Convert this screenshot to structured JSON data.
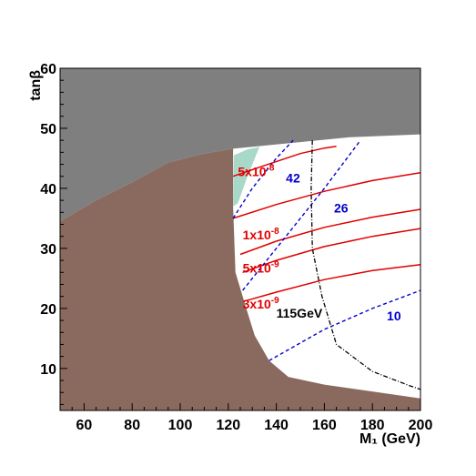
{
  "chart_data": {
    "type": "area",
    "xlabel": "M₁ (GeV)",
    "ylabel": "tanβ",
    "xlim": [
      50,
      200
    ],
    "ylim": [
      3,
      60
    ],
    "xticks": [
      60,
      80,
      100,
      120,
      140,
      160,
      180,
      200
    ],
    "yticks": [
      10,
      20,
      30,
      40,
      50,
      60
    ],
    "grid": false,
    "colors": {
      "excluded_high": "#7f7f7f",
      "excluded_low": "#8a6a5e",
      "cosmological": "#a8d8c8",
      "allowed": "#ffffff",
      "bs_contours": "#e00000",
      "mu_contours": "#0000cc",
      "higgs_contour": "#000000"
    },
    "regions": [
      {
        "name": "excluded-high",
        "boundary": [
          [
            50,
            60
          ],
          [
            200,
            60
          ],
          [
            200,
            49
          ],
          [
            170,
            48.5
          ],
          [
            122,
            46.6
          ],
          [
            110,
            45.8
          ],
          [
            95,
            44.3
          ],
          [
            80,
            41
          ],
          [
            65,
            38
          ],
          [
            50,
            34.5
          ]
        ]
      },
      {
        "name": "excluded-low",
        "boundary": [
          [
            50,
            3
          ],
          [
            200,
            3
          ],
          [
            200,
            5
          ],
          [
            160,
            7.3
          ],
          [
            145,
            8.6
          ],
          [
            137,
            11.3
          ],
          [
            131,
            15.5
          ],
          [
            127.5,
            20
          ],
          [
            123,
            26
          ],
          [
            122,
            37
          ],
          [
            122,
            46.6
          ],
          [
            110,
            45.8
          ],
          [
            95,
            44.3
          ],
          [
            80,
            41
          ],
          [
            65,
            38
          ],
          [
            50,
            34.5
          ]
        ]
      },
      {
        "name": "cosmological-band",
        "boundary": [
          [
            122,
            37
          ],
          [
            122.3,
            45.5
          ],
          [
            128,
            46.5
          ],
          [
            133,
            46.9
          ],
          [
            128,
            42
          ],
          [
            124,
            37.5
          ]
        ]
      }
    ],
    "lines": [
      {
        "kind": "bs",
        "label": "5x10^-8",
        "points": [
          [
            122,
            42
          ],
          [
            135,
            43.8
          ],
          [
            150,
            45.8
          ],
          [
            160,
            46.7
          ],
          [
            165,
            47
          ]
        ]
      },
      {
        "kind": "bs",
        "label": "",
        "points": [
          [
            122,
            35
          ],
          [
            140,
            37.3
          ],
          [
            160,
            39.5
          ],
          [
            180,
            41.3
          ],
          [
            200,
            42.6
          ]
        ]
      },
      {
        "kind": "bs",
        "label": "1x10^-8",
        "points": [
          [
            125,
            29
          ],
          [
            140,
            31.2
          ],
          [
            160,
            33.5
          ],
          [
            180,
            35.2
          ],
          [
            200,
            36.5
          ]
        ]
      },
      {
        "kind": "bs",
        "label": "5x10^-9",
        "points": [
          [
            126,
            26
          ],
          [
            140,
            28
          ],
          [
            160,
            30.3
          ],
          [
            180,
            32
          ],
          [
            200,
            33.3
          ]
        ]
      },
      {
        "kind": "bs",
        "label": "3x10^-9",
        "points": [
          [
            127.5,
            21.3
          ],
          [
            140,
            22.7
          ],
          [
            160,
            24.8
          ],
          [
            180,
            26.3
          ],
          [
            200,
            27.3
          ]
        ]
      },
      {
        "kind": "mu",
        "label": "42",
        "points": [
          [
            122,
            35
          ],
          [
            130,
            40
          ],
          [
            140,
            45
          ],
          [
            147,
            48
          ]
        ]
      },
      {
        "kind": "mu",
        "label": "26",
        "points": [
          [
            126,
            23
          ],
          [
            140,
            30
          ],
          [
            160,
            40
          ],
          [
            175,
            48
          ]
        ]
      },
      {
        "kind": "mu",
        "label": "10",
        "points": [
          [
            137,
            11.3
          ],
          [
            160,
            16.5
          ],
          [
            180,
            20
          ],
          [
            200,
            23
          ]
        ]
      },
      {
        "kind": "higgs",
        "label": "115GeV",
        "points": [
          [
            155,
            48
          ],
          [
            154.5,
            40
          ],
          [
            155,
            30
          ],
          [
            159,
            22
          ],
          [
            165,
            14
          ],
          [
            180,
            9.5
          ],
          [
            195,
            7.2
          ],
          [
            200,
            6.5
          ]
        ]
      }
    ],
    "annotations": [
      {
        "text": "5x10",
        "sup": "-8",
        "x": 124,
        "y": 42,
        "color": "#e00000"
      },
      {
        "text": "42",
        "sup": "",
        "x": 144,
        "y": 41,
        "color": "#0000cc"
      },
      {
        "text": "26",
        "sup": "",
        "x": 164,
        "y": 36,
        "color": "#0000cc"
      },
      {
        "text": "1x10",
        "sup": "-8",
        "x": 126,
        "y": 31.5,
        "color": "#e00000"
      },
      {
        "text": "5x10",
        "sup": "-9",
        "x": 126,
        "y": 26,
        "color": "#e00000"
      },
      {
        "text": "3x10",
        "sup": "-9",
        "x": 126,
        "y": 20,
        "color": "#e00000"
      },
      {
        "text": "115GeV",
        "sup": "",
        "x": 140,
        "y": 18.5,
        "color": "#000000"
      },
      {
        "text": "10",
        "sup": "",
        "x": 186,
        "y": 18,
        "color": "#0000cc"
      }
    ]
  }
}
